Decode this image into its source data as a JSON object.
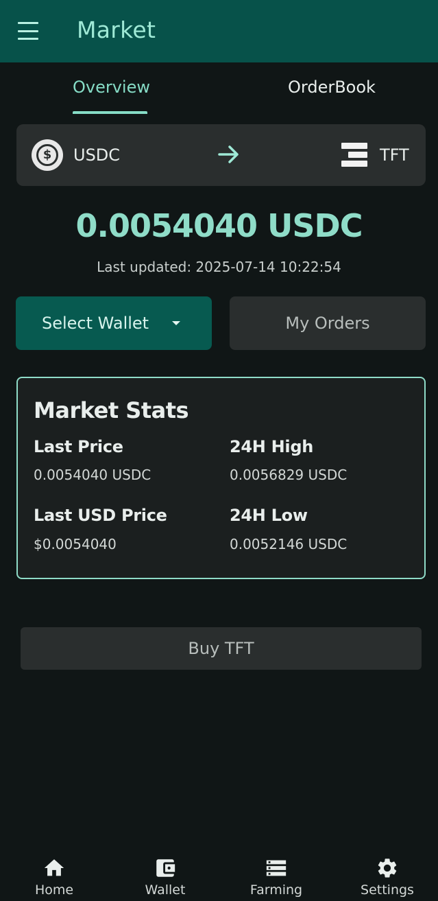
{
  "appbar": {
    "title": "Market",
    "menu_icon": "hamburger-menu-icon"
  },
  "tabs": [
    {
      "label": "Overview",
      "active": true
    },
    {
      "label": "OrderBook",
      "active": false
    }
  ],
  "pair": {
    "from": "USDC",
    "from_icon": "usdc-coin-icon",
    "arrow_icon": "arrow-right-icon",
    "to": "TFT",
    "to_icon": "tft-logo-icon"
  },
  "price": {
    "value": "0.0054040 USDC",
    "last_updated": "Last updated: 2025-07-14 10:22:54"
  },
  "actions": {
    "select_wallet": "Select Wallet",
    "my_orders": "My Orders",
    "buy": "Buy TFT"
  },
  "stats": {
    "title": "Market Stats",
    "last_price_label": "Last Price",
    "last_price_value": "0.0054040 USDC",
    "high_label": "24H High",
    "high_value": "0.0056829 USDC",
    "last_usd_label": "Last USD Price",
    "last_usd_value": "$0.0054040",
    "low_label": "24H Low",
    "low_value": "0.0052146 USDC"
  },
  "bottom_nav": [
    {
      "label": "Home",
      "icon": "home-icon"
    },
    {
      "label": "Wallet",
      "icon": "wallet-icon"
    },
    {
      "label": "Farming",
      "icon": "farming-servers-icon"
    },
    {
      "label": "Settings",
      "icon": "gear-icon"
    }
  ],
  "colors": {
    "appbar": "#07524a",
    "accent": "#8fdcc8",
    "background": "#101616",
    "surface": "#2a2e2e",
    "primary_button": "#075a50"
  }
}
